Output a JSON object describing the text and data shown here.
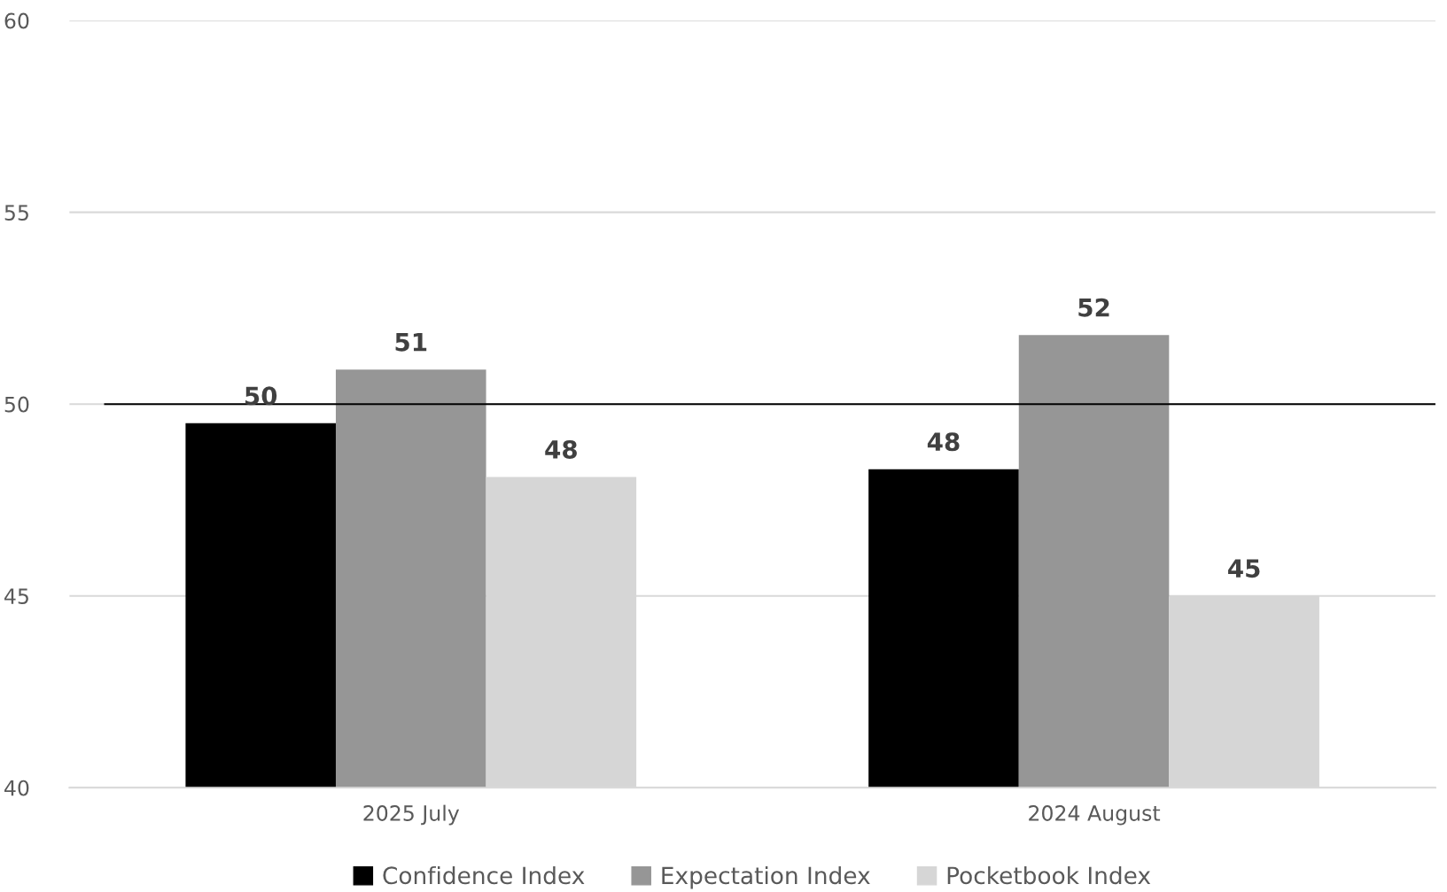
{
  "chart_data": {
    "type": "bar",
    "categories": [
      "2025 July",
      "2024 August"
    ],
    "series": [
      {
        "name": "Confidence Index",
        "color": "#000000",
        "values": [
          49.5,
          48.3
        ],
        "value_labels": [
          "50",
          "48"
        ]
      },
      {
        "name": "Expectation Index",
        "color": "#969696",
        "values": [
          50.9,
          51.8
        ],
        "value_labels": [
          "51",
          "52"
        ]
      },
      {
        "name": "Pocketbook Index",
        "color": "#d6d6d6",
        "values": [
          48.1,
          45.0
        ],
        "value_labels": [
          "48",
          "45"
        ]
      }
    ],
    "ylim": [
      40,
      60
    ],
    "yticks": [
      40,
      45,
      50,
      55,
      60
    ],
    "grid": "y",
    "legend": "bottom",
    "ref_lines": [
      {
        "axis": "y",
        "value": 50,
        "color": "#000000"
      }
    ]
  }
}
